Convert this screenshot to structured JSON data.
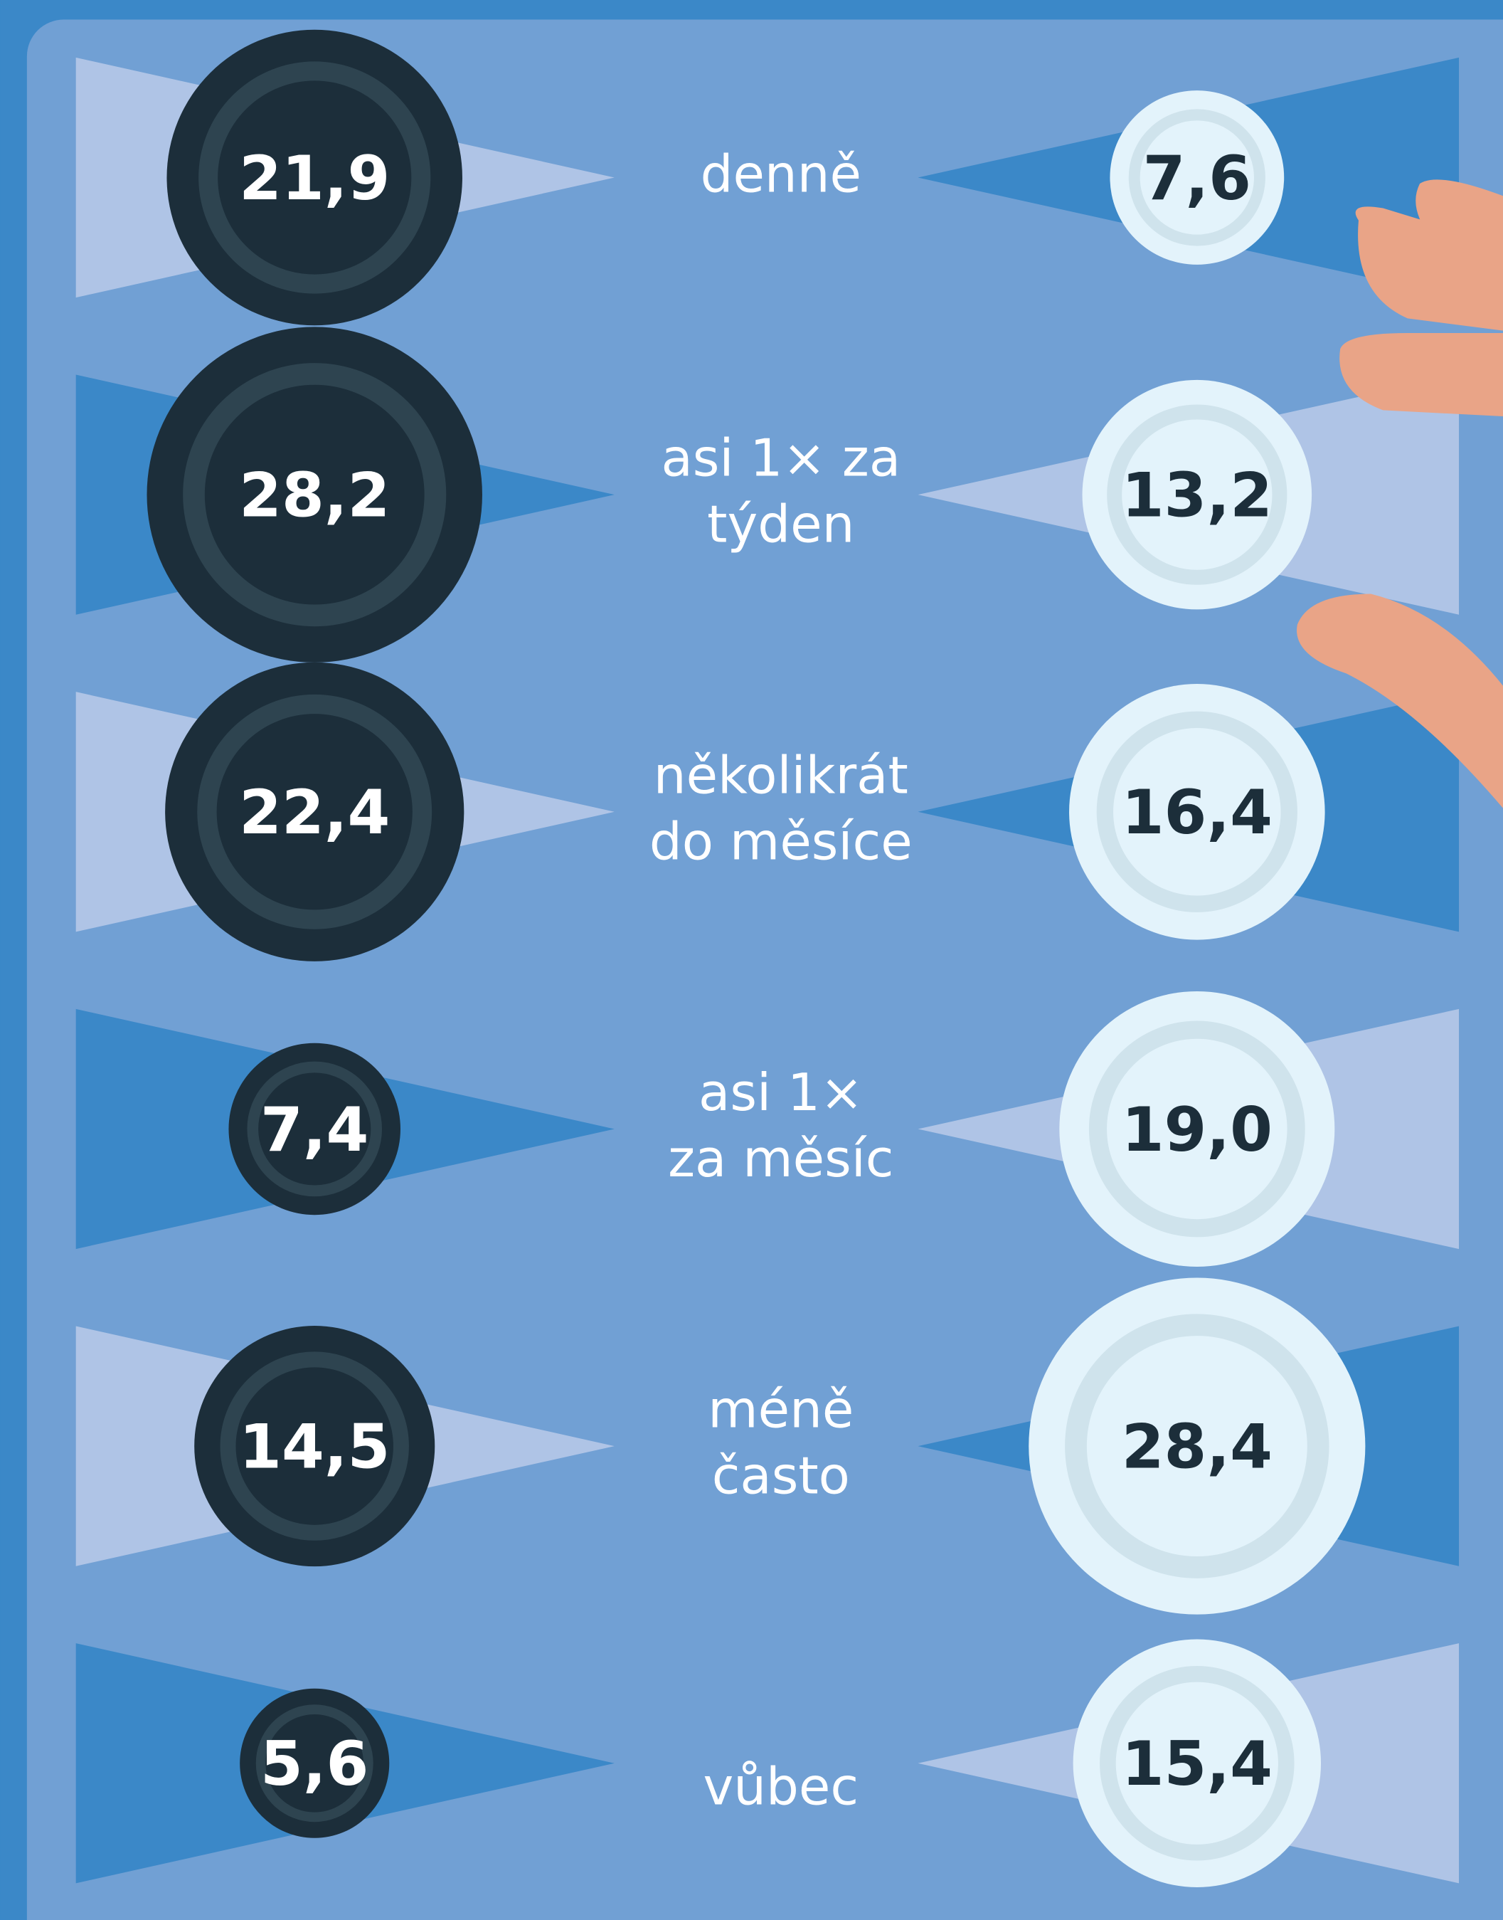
{
  "chart_data": {
    "type": "bubble",
    "categories": [
      [
        "denně"
      ],
      [
        "asi 1× za",
        "týden"
      ],
      [
        "několikrát",
        "do měsíce"
      ],
      [
        "asi 1×",
        "za měsíc"
      ],
      [
        "méně",
        "často"
      ],
      [
        "vůbec"
      ]
    ],
    "series": [
      {
        "color": "#1c2e3a",
        "values": [
          21.9,
          28.2,
          22.4,
          7.4,
          14.5,
          5.6
        ],
        "value_labels": [
          "21,9",
          "28,2",
          "22,4",
          "7,4",
          "14,5",
          "5,6"
        ]
      },
      {
        "color": "#e3f3fb",
        "values": [
          7.6,
          13.2,
          16.4,
          19.0,
          28.4,
          15.4
        ],
        "value_labels": [
          "7,6",
          "13,2",
          "16,4",
          "19,0",
          "28,4",
          "15,4"
        ]
      }
    ]
  }
}
